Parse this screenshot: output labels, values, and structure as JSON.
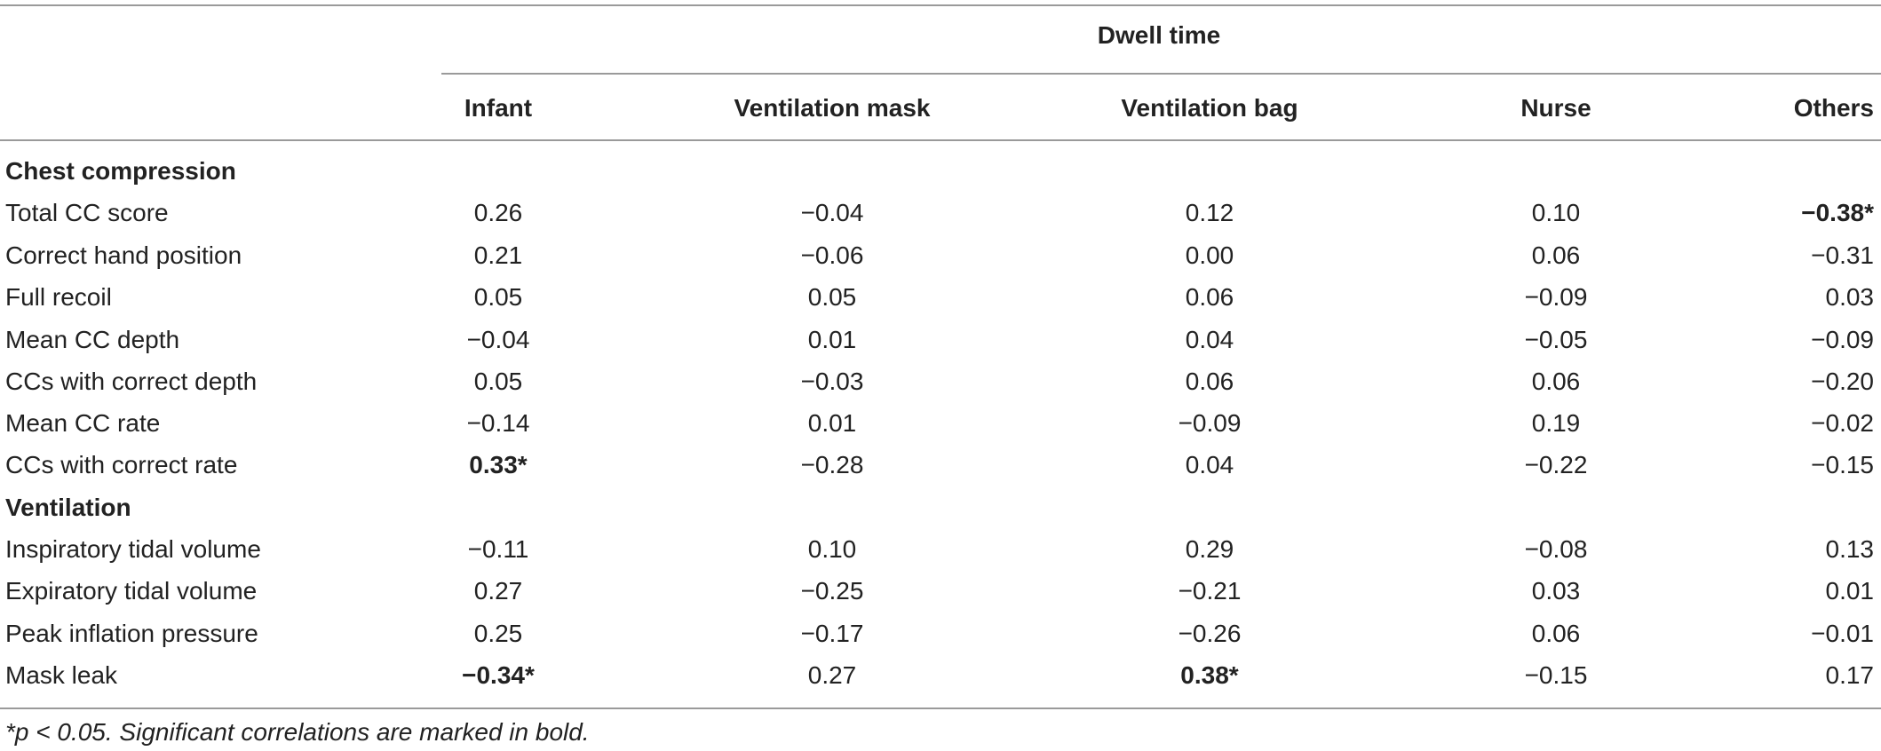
{
  "table": {
    "spanner": "Dwell time",
    "columns": [
      "Infant",
      "Ventilation mask",
      "Ventilation bag",
      "Nurse",
      "Others"
    ],
    "rows": [
      {
        "type": "section",
        "label": "Chest compression"
      },
      {
        "type": "data",
        "label": "Total CC score",
        "cells": [
          {
            "text": "0.26"
          },
          {
            "text": "−0.04"
          },
          {
            "text": "0.12"
          },
          {
            "text": "0.10"
          },
          {
            "text": "−0.38*",
            "bold": true
          }
        ]
      },
      {
        "type": "data",
        "label": "Correct hand position",
        "cells": [
          {
            "text": "0.21"
          },
          {
            "text": "−0.06"
          },
          {
            "text": "0.00"
          },
          {
            "text": "0.06"
          },
          {
            "text": "−0.31"
          }
        ]
      },
      {
        "type": "data",
        "label": "Full recoil",
        "cells": [
          {
            "text": "0.05"
          },
          {
            "text": "0.05"
          },
          {
            "text": "0.06"
          },
          {
            "text": "−0.09"
          },
          {
            "text": "0.03"
          }
        ]
      },
      {
        "type": "data",
        "label": "Mean CC depth",
        "cells": [
          {
            "text": "−0.04"
          },
          {
            "text": "0.01"
          },
          {
            "text": "0.04"
          },
          {
            "text": "−0.05"
          },
          {
            "text": "−0.09"
          }
        ]
      },
      {
        "type": "data",
        "label": "CCs with correct depth",
        "cells": [
          {
            "text": "0.05"
          },
          {
            "text": "−0.03"
          },
          {
            "text": "0.06"
          },
          {
            "text": "0.06"
          },
          {
            "text": "−0.20"
          }
        ]
      },
      {
        "type": "data",
        "label": "Mean CC rate",
        "cells": [
          {
            "text": "−0.14"
          },
          {
            "text": "0.01"
          },
          {
            "text": "−0.09"
          },
          {
            "text": "0.19"
          },
          {
            "text": "−0.02"
          }
        ]
      },
      {
        "type": "data",
        "label": "CCs with correct rate",
        "cells": [
          {
            "text": "0.33*",
            "bold": true
          },
          {
            "text": "−0.28"
          },
          {
            "text": "0.04"
          },
          {
            "text": "−0.22"
          },
          {
            "text": "−0.15"
          }
        ]
      },
      {
        "type": "section",
        "label": "Ventilation"
      },
      {
        "type": "data",
        "label": "Inspiratory tidal volume",
        "cells": [
          {
            "text": "−0.11"
          },
          {
            "text": "0.10"
          },
          {
            "text": "0.29"
          },
          {
            "text": "−0.08"
          },
          {
            "text": "0.13"
          }
        ]
      },
      {
        "type": "data",
        "label": "Expiratory tidal volume",
        "cells": [
          {
            "text": "0.27"
          },
          {
            "text": "−0.25"
          },
          {
            "text": "−0.21"
          },
          {
            "text": "0.03"
          },
          {
            "text": "0.01"
          }
        ]
      },
      {
        "type": "data",
        "label": "Peak inflation pressure",
        "cells": [
          {
            "text": "0.25"
          },
          {
            "text": "−0.17"
          },
          {
            "text": "−0.26"
          },
          {
            "text": "0.06"
          },
          {
            "text": "−0.01"
          }
        ]
      },
      {
        "type": "data",
        "label": "Mask leak",
        "cells": [
          {
            "text": "−0.34*",
            "bold": true
          },
          {
            "text": "0.27"
          },
          {
            "text": "0.38*",
            "bold": true
          },
          {
            "text": "−0.15"
          },
          {
            "text": "0.17"
          }
        ]
      }
    ],
    "footnote": "*p < 0.05. Significant correlations are marked in bold."
  }
}
